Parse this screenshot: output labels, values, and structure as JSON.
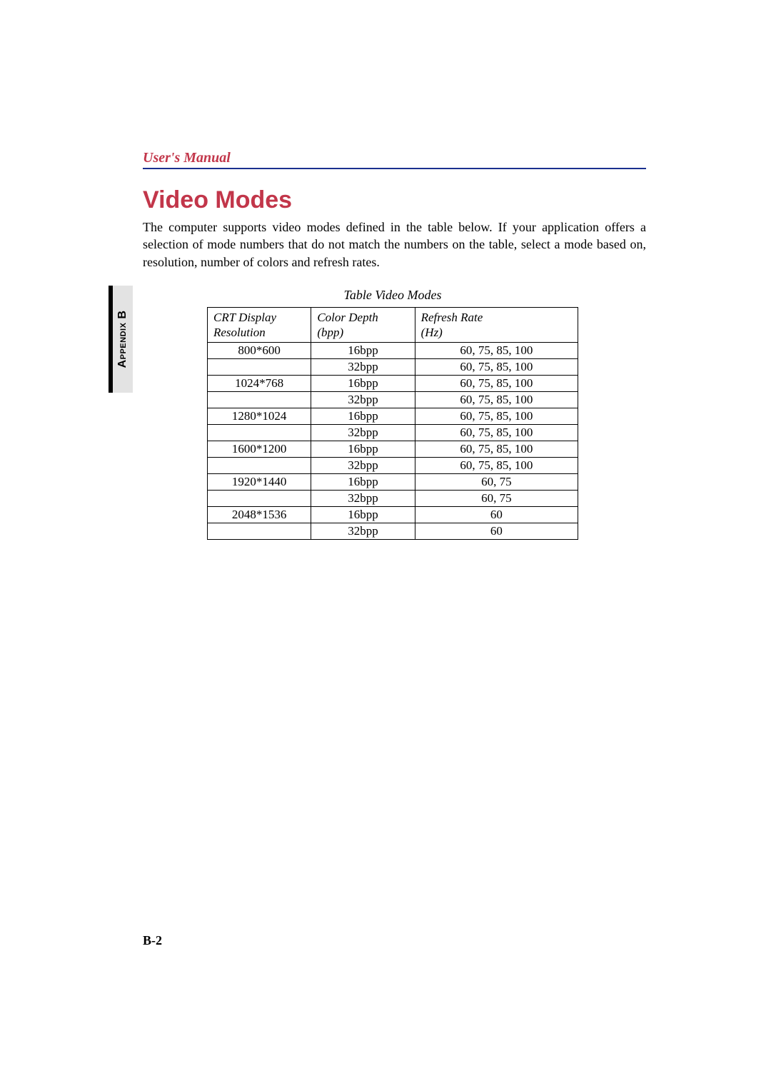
{
  "colors": {
    "accent_red": "#c2364a",
    "accent_blue": "#1a2f8f",
    "sidebar_bg": "#e3e3e3",
    "text": "#000000",
    "page_bg": "#ffffff"
  },
  "header": {
    "running_title": "User's Manual"
  },
  "sidebar": {
    "tab_label": "Appendix B"
  },
  "section": {
    "title": "Video Modes",
    "intro": "The computer supports video modes defined in the table below. If your application offers a selection of mode numbers that do not match the numbers on the table, select a mode based on, resolution, number of colors and refresh rates."
  },
  "table": {
    "caption": "Table  Video Modes",
    "columns": [
      {
        "line1": "CRT Display",
        "line2": "Resolution",
        "class": "col-res"
      },
      {
        "line1": "Color Depth",
        "line2": "(bpp)",
        "class": "col-bpp"
      },
      {
        "line1": "Refresh Rate",
        "line2": "(Hz)",
        "class": "col-rate"
      }
    ],
    "rows": [
      {
        "resolution": "800*600",
        "depth": "16bpp",
        "rate": "60, 75, 85, 100",
        "first_of_group": true
      },
      {
        "resolution": "",
        "depth": "32bpp",
        "rate": "60, 75, 85, 100",
        "first_of_group": false
      },
      {
        "resolution": "1024*768",
        "depth": "16bpp",
        "rate": "60, 75, 85, 100",
        "first_of_group": true
      },
      {
        "resolution": "",
        "depth": "32bpp",
        "rate": "60, 75, 85, 100",
        "first_of_group": false
      },
      {
        "resolution": "1280*1024",
        "depth": "16bpp",
        "rate": "60, 75, 85, 100",
        "first_of_group": true
      },
      {
        "resolution": "",
        "depth": "32bpp",
        "rate": "60, 75, 85, 100",
        "first_of_group": false
      },
      {
        "resolution": "1600*1200",
        "depth": "16bpp",
        "rate": "60, 75, 85, 100",
        "first_of_group": true
      },
      {
        "resolution": "",
        "depth": "32bpp",
        "rate": "60, 75, 85, 100",
        "first_of_group": false
      },
      {
        "resolution": "1920*1440",
        "depth": "16bpp",
        "rate": "60, 75",
        "first_of_group": true
      },
      {
        "resolution": "",
        "depth": "32bpp",
        "rate": "60, 75",
        "first_of_group": false
      },
      {
        "resolution": "2048*1536",
        "depth": "16bpp",
        "rate": "60",
        "first_of_group": true
      },
      {
        "resolution": "",
        "depth": "32bpp",
        "rate": "60",
        "first_of_group": false
      }
    ]
  },
  "footer": {
    "page_number": "B-2"
  }
}
